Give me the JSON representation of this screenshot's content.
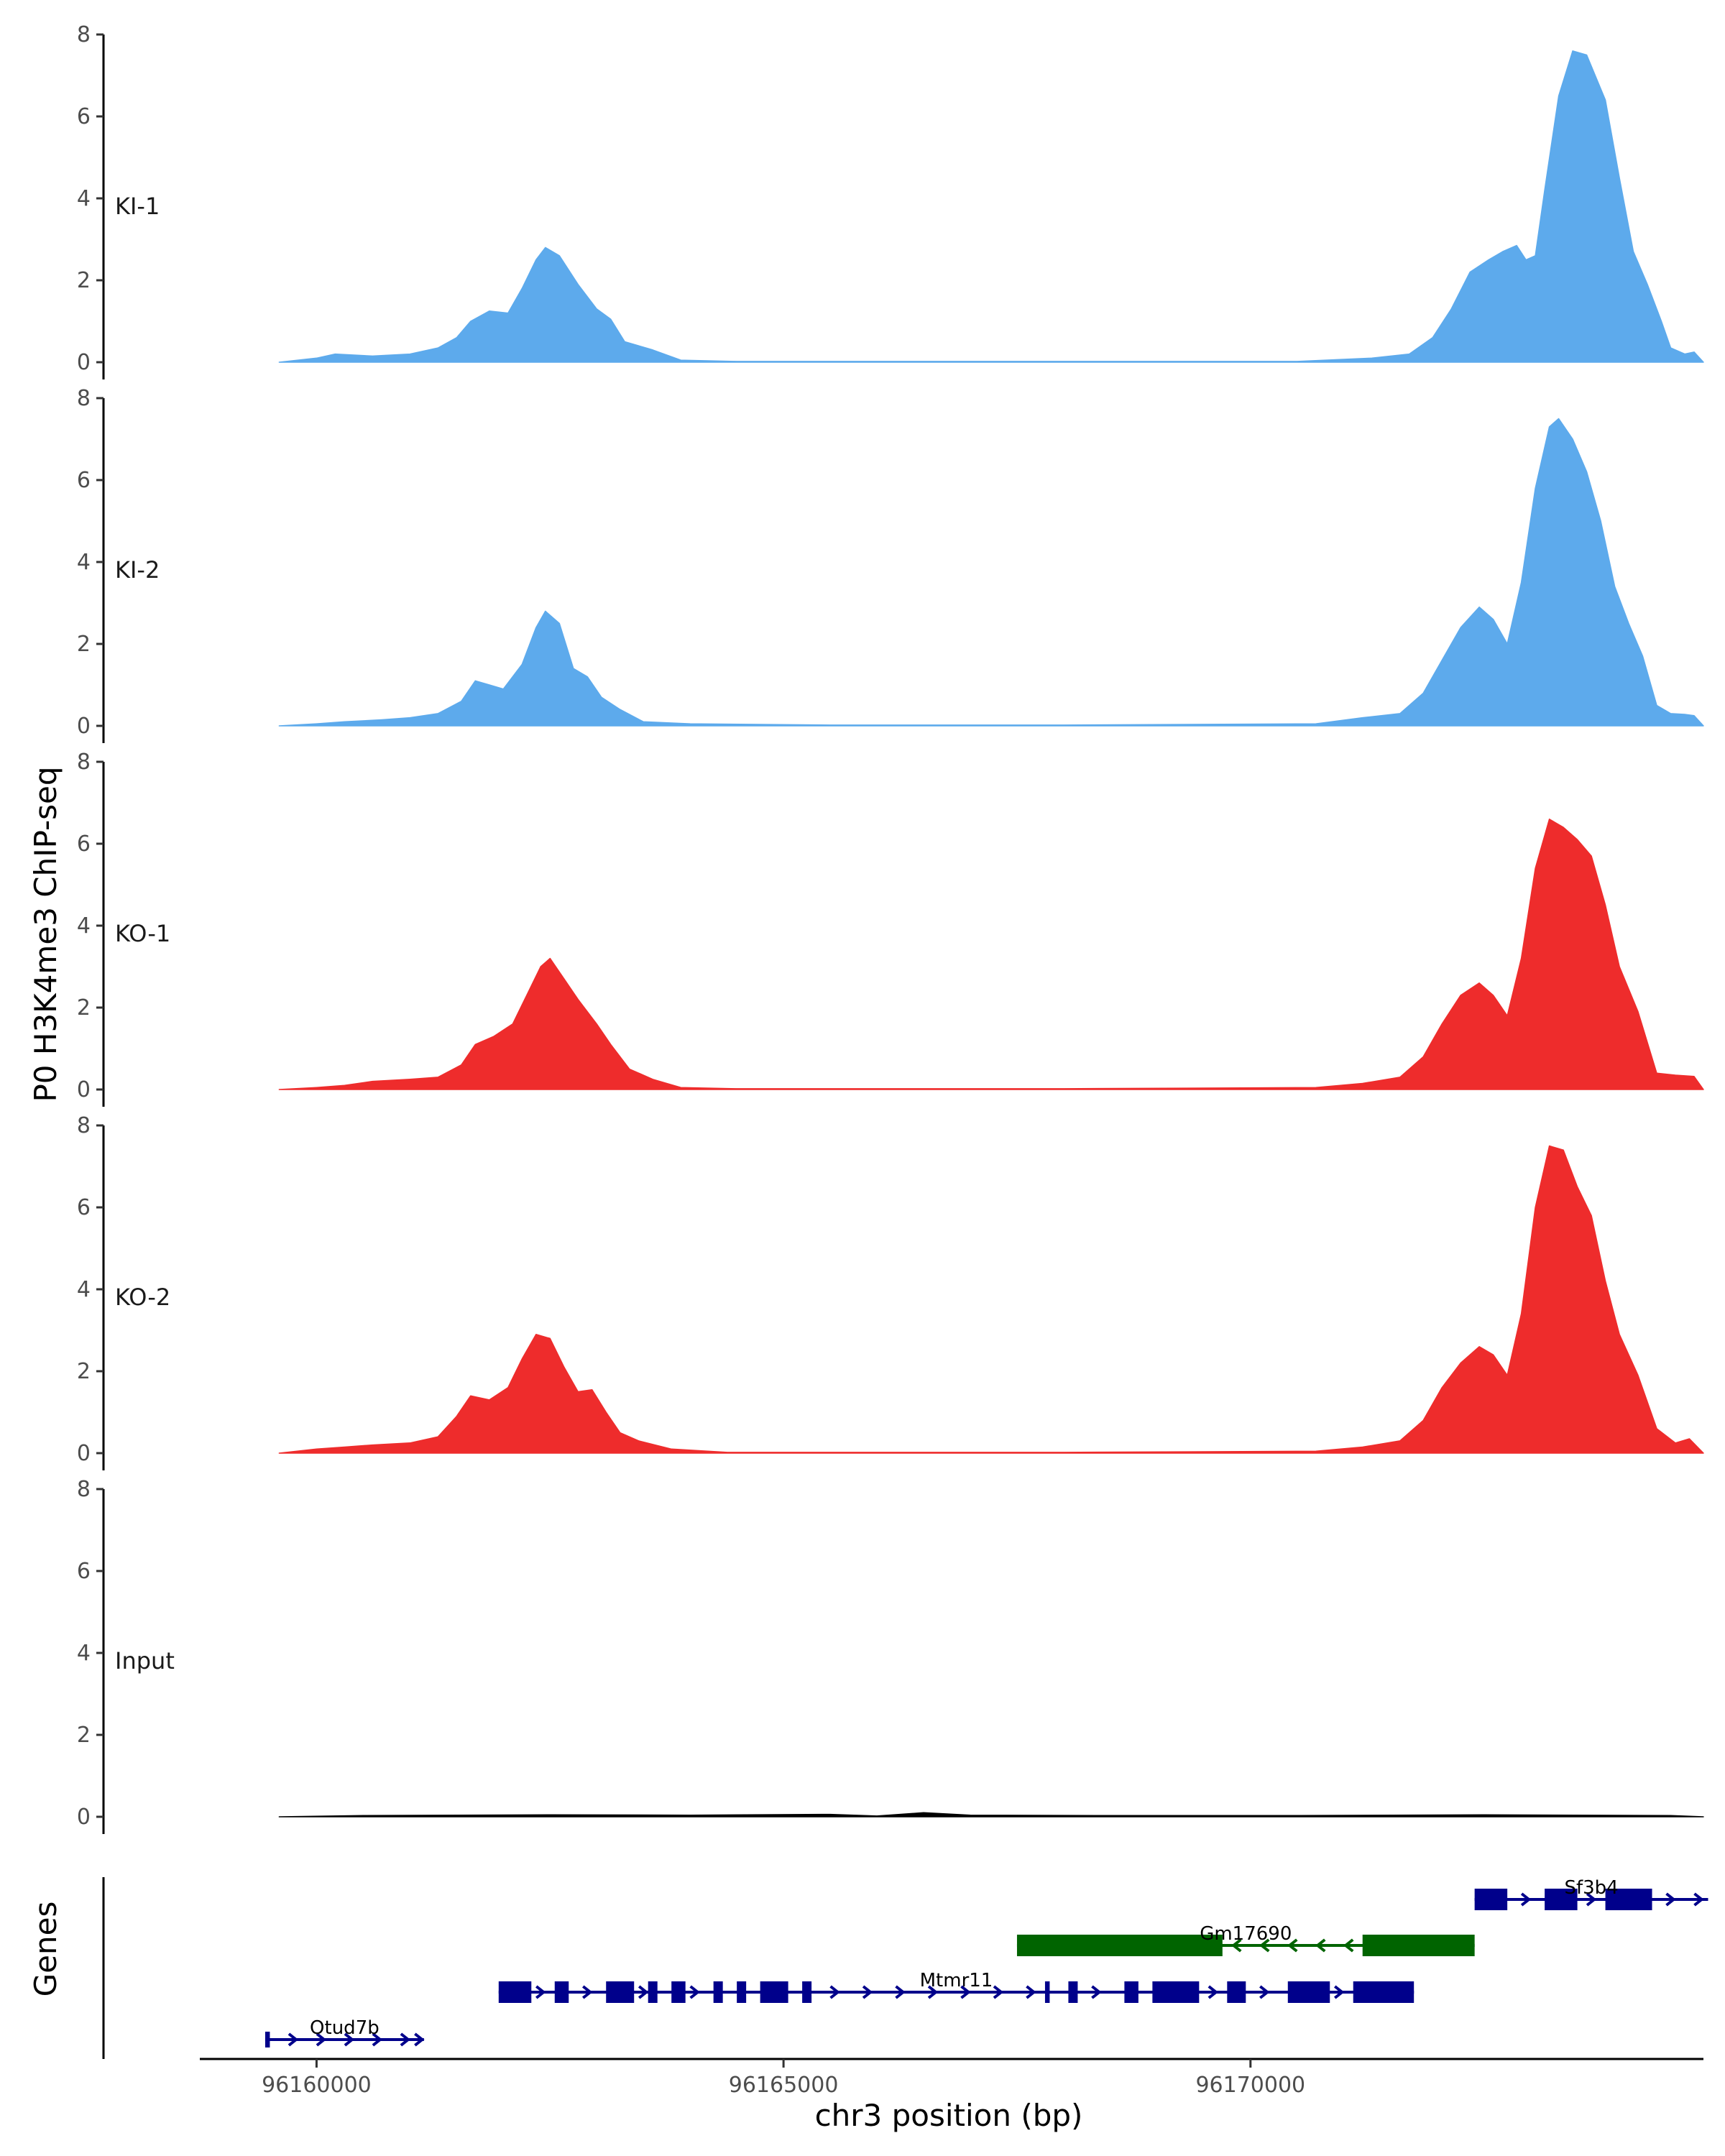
{
  "chart_data": {
    "type": "area",
    "title": "",
    "ylabel": "P0 H3K4me3 ChIP-seq",
    "xlabel": "chr3 position (bp)",
    "genes_axis_label": "Genes",
    "xlim": [
      96158750,
      96174850
    ],
    "x_ticks": [
      96160000,
      96165000,
      96170000
    ],
    "x_tick_labels": [
      "96160000",
      "96165000",
      "96170000"
    ],
    "ylim": [
      0,
      8
    ],
    "y_ticks": [
      0,
      2,
      4,
      6,
      8
    ],
    "y_tick_labels": [
      "0",
      "2",
      "4",
      "6",
      "8"
    ],
    "tracks": [
      {
        "name": "KI-1",
        "color": "#5DAAEC",
        "points": [
          [
            96159600,
            0
          ],
          [
            96160000,
            0.1
          ],
          [
            96160200,
            0.2
          ],
          [
            96160600,
            0.15
          ],
          [
            96161000,
            0.2
          ],
          [
            96161300,
            0.35
          ],
          [
            96161500,
            0.6
          ],
          [
            96161650,
            1.0
          ],
          [
            96161850,
            1.25
          ],
          [
            96162050,
            1.2
          ],
          [
            96162200,
            1.8
          ],
          [
            96162350,
            2.5
          ],
          [
            96162450,
            2.8
          ],
          [
            96162600,
            2.6
          ],
          [
            96162800,
            1.9
          ],
          [
            96163000,
            1.3
          ],
          [
            96163150,
            1.05
          ],
          [
            96163300,
            0.5
          ],
          [
            96163600,
            0.3
          ],
          [
            96163900,
            0.05
          ],
          [
            96164500,
            0.02
          ],
          [
            96165500,
            0.02
          ],
          [
            96168000,
            0.02
          ],
          [
            96170500,
            0.02
          ],
          [
            96171300,
            0.1
          ],
          [
            96171700,
            0.2
          ],
          [
            96171950,
            0.6
          ],
          [
            96172150,
            1.3
          ],
          [
            96172350,
            2.2
          ],
          [
            96172550,
            2.5
          ],
          [
            96172700,
            2.7
          ],
          [
            96172850,
            2.85
          ],
          [
            96172950,
            2.5
          ],
          [
            96173050,
            2.6
          ],
          [
            96173150,
            4.2
          ],
          [
            96173300,
            6.5
          ],
          [
            96173450,
            7.6
          ],
          [
            96173600,
            7.5
          ],
          [
            96173800,
            6.4
          ],
          [
            96173950,
            4.5
          ],
          [
            96174100,
            2.7
          ],
          [
            96174250,
            1.9
          ],
          [
            96174400,
            1.0
          ],
          [
            96174500,
            0.35
          ],
          [
            96174650,
            0.2
          ],
          [
            96174750,
            0.25
          ],
          [
            96174850,
            0
          ]
        ]
      },
      {
        "name": "KI-2",
        "color": "#5DAAEC",
        "points": [
          [
            96159600,
            0
          ],
          [
            96160000,
            0.05
          ],
          [
            96160300,
            0.1
          ],
          [
            96160700,
            0.15
          ],
          [
            96161000,
            0.2
          ],
          [
            96161300,
            0.3
          ],
          [
            96161550,
            0.6
          ],
          [
            96161700,
            1.1
          ],
          [
            96161850,
            1.0
          ],
          [
            96162000,
            0.9
          ],
          [
            96162200,
            1.5
          ],
          [
            96162350,
            2.4
          ],
          [
            96162450,
            2.8
          ],
          [
            96162600,
            2.5
          ],
          [
            96162750,
            1.4
          ],
          [
            96162900,
            1.2
          ],
          [
            96163050,
            0.7
          ],
          [
            96163250,
            0.4
          ],
          [
            96163500,
            0.1
          ],
          [
            96164000,
            0.05
          ],
          [
            96165500,
            0.02
          ],
          [
            96168000,
            0.02
          ],
          [
            96170700,
            0.05
          ],
          [
            96171200,
            0.2
          ],
          [
            96171600,
            0.3
          ],
          [
            96171850,
            0.8
          ],
          [
            96172050,
            1.6
          ],
          [
            96172250,
            2.4
          ],
          [
            96172450,
            2.9
          ],
          [
            96172600,
            2.6
          ],
          [
            96172750,
            2.0
          ],
          [
            96172900,
            3.5
          ],
          [
            96173050,
            5.8
          ],
          [
            96173200,
            7.3
          ],
          [
            96173300,
            7.5
          ],
          [
            96173450,
            7.0
          ],
          [
            96173600,
            6.2
          ],
          [
            96173750,
            5.0
          ],
          [
            96173900,
            3.4
          ],
          [
            96174050,
            2.5
          ],
          [
            96174200,
            1.7
          ],
          [
            96174350,
            0.5
          ],
          [
            96174500,
            0.3
          ],
          [
            96174650,
            0.28
          ],
          [
            96174750,
            0.25
          ],
          [
            96174850,
            0
          ]
        ]
      },
      {
        "name": "KO-1",
        "color": "#EE2C2C",
        "points": [
          [
            96159600,
            0
          ],
          [
            96160000,
            0.05
          ],
          [
            96160300,
            0.1
          ],
          [
            96160600,
            0.2
          ],
          [
            96161000,
            0.25
          ],
          [
            96161300,
            0.3
          ],
          [
            96161550,
            0.6
          ],
          [
            96161700,
            1.1
          ],
          [
            96161900,
            1.3
          ],
          [
            96162100,
            1.6
          ],
          [
            96162250,
            2.3
          ],
          [
            96162400,
            3.0
          ],
          [
            96162500,
            3.2
          ],
          [
            96162650,
            2.7
          ],
          [
            96162800,
            2.2
          ],
          [
            96163000,
            1.6
          ],
          [
            96163150,
            1.1
          ],
          [
            96163350,
            0.5
          ],
          [
            96163600,
            0.25
          ],
          [
            96163900,
            0.05
          ],
          [
            96164500,
            0.02
          ],
          [
            96165500,
            0.02
          ],
          [
            96168000,
            0.02
          ],
          [
            96170700,
            0.05
          ],
          [
            96171200,
            0.15
          ],
          [
            96171600,
            0.3
          ],
          [
            96171850,
            0.8
          ],
          [
            96172050,
            1.6
          ],
          [
            96172250,
            2.3
          ],
          [
            96172450,
            2.6
          ],
          [
            96172600,
            2.3
          ],
          [
            96172750,
            1.8
          ],
          [
            96172900,
            3.2
          ],
          [
            96173050,
            5.4
          ],
          [
            96173200,
            6.6
          ],
          [
            96173350,
            6.4
          ],
          [
            96173500,
            6.1
          ],
          [
            96173650,
            5.7
          ],
          [
            96173800,
            4.5
          ],
          [
            96173950,
            3.0
          ],
          [
            96174150,
            1.9
          ],
          [
            96174350,
            0.4
          ],
          [
            96174550,
            0.35
          ],
          [
            96174750,
            0.32
          ],
          [
            96174850,
            0
          ]
        ]
      },
      {
        "name": "KO-2",
        "color": "#EE2C2C",
        "points": [
          [
            96159600,
            0
          ],
          [
            96160000,
            0.1
          ],
          [
            96160300,
            0.15
          ],
          [
            96160600,
            0.2
          ],
          [
            96161000,
            0.25
          ],
          [
            96161300,
            0.4
          ],
          [
            96161500,
            0.9
          ],
          [
            96161650,
            1.4
          ],
          [
            96161850,
            1.3
          ],
          [
            96162050,
            1.6
          ],
          [
            96162200,
            2.3
          ],
          [
            96162350,
            2.9
          ],
          [
            96162500,
            2.8
          ],
          [
            96162650,
            2.1
          ],
          [
            96162800,
            1.5
          ],
          [
            96162950,
            1.55
          ],
          [
            96163100,
            1.0
          ],
          [
            96163250,
            0.5
          ],
          [
            96163450,
            0.3
          ],
          [
            96163800,
            0.1
          ],
          [
            96164400,
            0.02
          ],
          [
            96165500,
            0.02
          ],
          [
            96168000,
            0.02
          ],
          [
            96170700,
            0.05
          ],
          [
            96171200,
            0.15
          ],
          [
            96171600,
            0.3
          ],
          [
            96171850,
            0.8
          ],
          [
            96172050,
            1.6
          ],
          [
            96172250,
            2.2
          ],
          [
            96172450,
            2.6
          ],
          [
            96172600,
            2.4
          ],
          [
            96172750,
            1.9
          ],
          [
            96172900,
            3.4
          ],
          [
            96173050,
            6.0
          ],
          [
            96173200,
            7.5
          ],
          [
            96173350,
            7.4
          ],
          [
            96173500,
            6.5
          ],
          [
            96173650,
            5.8
          ],
          [
            96173800,
            4.2
          ],
          [
            96173950,
            2.9
          ],
          [
            96174150,
            1.9
          ],
          [
            96174350,
            0.6
          ],
          [
            96174550,
            0.25
          ],
          [
            96174700,
            0.35
          ],
          [
            96174850,
            0
          ]
        ]
      },
      {
        "name": "Input",
        "color": "#000000",
        "points": [
          [
            96159600,
            0
          ],
          [
            96160500,
            0.03
          ],
          [
            96162500,
            0.05
          ],
          [
            96164000,
            0.04
          ],
          [
            96165500,
            0.06
          ],
          [
            96166000,
            0.02
          ],
          [
            96166500,
            0.1
          ],
          [
            96167000,
            0.04
          ],
          [
            96168500,
            0.03
          ],
          [
            96170500,
            0.03
          ],
          [
            96172500,
            0.05
          ],
          [
            96174500,
            0.03
          ],
          [
            96174850,
            0
          ]
        ]
      }
    ],
    "genes": [
      {
        "name": "Otud7b",
        "strand": "+",
        "color": "#00008B",
        "row": 0,
        "start": 96159450,
        "end": 96161150,
        "label_x": 96160300,
        "exons": [
          [
            96159450,
            96159500
          ]
        ],
        "arrows": [
          96159750,
          96160050,
          96160350,
          96160650,
          96160950,
          96161100
        ]
      },
      {
        "name": "Mtmr11",
        "strand": "+",
        "color": "#00008B",
        "row": 1,
        "start": 96161950,
        "end": 96171750,
        "label_x": 96166850,
        "exons": [
          [
            96161950,
            96162300
          ],
          [
            96162550,
            96162700
          ],
          [
            96163100,
            96163400
          ],
          [
            96163550,
            96163650
          ],
          [
            96163800,
            96163950
          ],
          [
            96164250,
            96164350
          ],
          [
            96164500,
            96164600
          ],
          [
            96164750,
            96165050
          ],
          [
            96165200,
            96165300
          ],
          [
            96167800,
            96167850
          ],
          [
            96168050,
            96168150
          ],
          [
            96168650,
            96168800
          ],
          [
            96168950,
            96169450
          ],
          [
            96169750,
            96169950
          ],
          [
            96170400,
            96170850
          ],
          [
            96171100,
            96171750
          ]
        ],
        "arrows": [
          96162400,
          96162900,
          96163500,
          96164050,
          96165550,
          96165900,
          96166250,
          96166600,
          96166950,
          96167300,
          96167650,
          96168350,
          96169600,
          96170150,
          96170950
        ]
      },
      {
        "name": "Gm17690",
        "strand": "-",
        "color": "#006400",
        "row": 2,
        "start": 96167500,
        "end": 96172400,
        "label_x": 96169950,
        "exons": [
          [
            96167500,
            96169700
          ],
          [
            96171200,
            96172400
          ]
        ],
        "arrows": [
          96169850,
          96170150,
          96170450,
          96170750,
          96171050
        ]
      },
      {
        "name": "Sf3b4",
        "strand": "+",
        "color": "#00008B",
        "row": 3,
        "start": 96172400,
        "end": 96174900,
        "label_x": 96173650,
        "exons": [
          [
            96172400,
            96172750
          ],
          [
            96173150,
            96173500
          ],
          [
            96173800,
            96174300
          ]
        ],
        "arrows": [
          96172500,
          96172950,
          96173650,
          96174500,
          96174800
        ]
      }
    ]
  }
}
